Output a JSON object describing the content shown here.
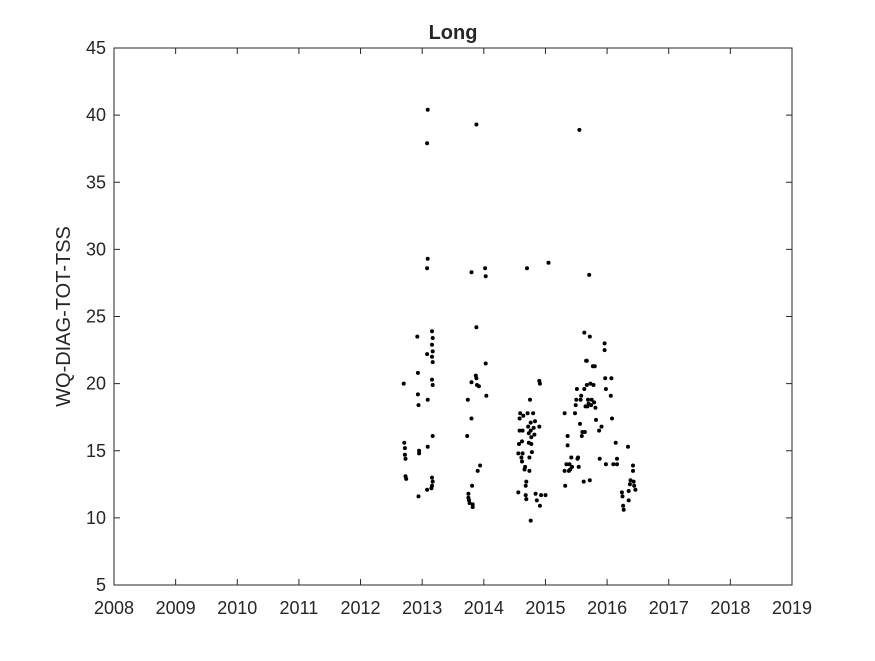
{
  "chart_data": {
    "type": "scatter",
    "title": "Long",
    "xlabel": "",
    "ylabel": "WQ-DIAG-TOT-TSS",
    "xlim": [
      2008,
      2019
    ],
    "ylim": [
      5,
      45
    ],
    "xticks": [
      "2008",
      "2009",
      "2010",
      "2011",
      "2012",
      "2013",
      "2014",
      "2015",
      "2016",
      "2017",
      "2018",
      "2019"
    ],
    "yticks": [
      "5",
      "10",
      "15",
      "20",
      "25",
      "30",
      "35",
      "40",
      "45"
    ],
    "grid": false,
    "marker_color": "#000000",
    "points": [
      [
        2012.7,
        20.0
      ],
      [
        2012.71,
        15.6
      ],
      [
        2012.72,
        15.2
      ],
      [
        2012.72,
        14.7
      ],
      [
        2012.73,
        14.4
      ],
      [
        2012.73,
        13.1
      ],
      [
        2012.74,
        12.9
      ],
      [
        2012.92,
        23.5
      ],
      [
        2012.93,
        20.8
      ],
      [
        2012.93,
        19.2
      ],
      [
        2012.94,
        18.4
      ],
      [
        2012.95,
        14.8
      ],
      [
        2012.95,
        15.0
      ],
      [
        2012.94,
        11.6
      ],
      [
        2013.09,
        40.4
      ],
      [
        2013.08,
        37.9
      ],
      [
        2013.09,
        29.3
      ],
      [
        2013.08,
        28.6
      ],
      [
        2013.08,
        22.2
      ],
      [
        2013.09,
        18.8
      ],
      [
        2013.09,
        15.3
      ],
      [
        2013.08,
        12.1
      ],
      [
        2013.16,
        23.9
      ],
      [
        2013.17,
        23.4
      ],
      [
        2013.16,
        22.9
      ],
      [
        2013.17,
        22.4
      ],
      [
        2013.16,
        22.0
      ],
      [
        2013.17,
        21.6
      ],
      [
        2013.16,
        20.3
      ],
      [
        2013.17,
        19.9
      ],
      [
        2013.17,
        16.1
      ],
      [
        2013.16,
        13.0
      ],
      [
        2013.17,
        12.7
      ],
      [
        2013.16,
        12.4
      ],
      [
        2013.15,
        12.2
      ],
      [
        2013.73,
        16.1
      ],
      [
        2013.74,
        18.8
      ],
      [
        2013.75,
        11.8
      ],
      [
        2013.75,
        11.5
      ],
      [
        2013.76,
        11.3
      ],
      [
        2013.77,
        11.1
      ],
      [
        2013.8,
        28.3
      ],
      [
        2013.8,
        20.1
      ],
      [
        2013.8,
        17.4
      ],
      [
        2013.81,
        12.4
      ],
      [
        2013.82,
        11.0
      ],
      [
        2013.82,
        10.8
      ],
      [
        2013.88,
        39.3
      ],
      [
        2013.88,
        24.2
      ],
      [
        2013.87,
        20.6
      ],
      [
        2013.88,
        20.4
      ],
      [
        2013.89,
        19.9
      ],
      [
        2013.9,
        13.5
      ],
      [
        2013.94,
        13.9
      ],
      [
        2013.92,
        19.8
      ],
      [
        2014.02,
        28.6
      ],
      [
        2014.03,
        28.0
      ],
      [
        2014.03,
        21.5
      ],
      [
        2014.04,
        19.1
      ],
      [
        2014.56,
        11.9
      ],
      [
        2014.56,
        14.8
      ],
      [
        2014.57,
        15.5
      ],
      [
        2014.58,
        16.5
      ],
      [
        2014.58,
        17.4
      ],
      [
        2014.59,
        17.8
      ],
      [
        2014.61,
        14.5
      ],
      [
        2014.62,
        15.7
      ],
      [
        2014.62,
        14.2
      ],
      [
        2014.63,
        14.8
      ],
      [
        2014.63,
        16.5
      ],
      [
        2014.64,
        17.6
      ],
      [
        2014.66,
        13.6
      ],
      [
        2014.67,
        13.8
      ],
      [
        2014.68,
        11.7
      ],
      [
        2014.68,
        12.4
      ],
      [
        2014.69,
        12.7
      ],
      [
        2014.69,
        11.4
      ],
      [
        2014.7,
        28.6
      ],
      [
        2014.71,
        17.8
      ],
      [
        2014.72,
        16.8
      ],
      [
        2014.73,
        16.3
      ],
      [
        2014.73,
        15.6
      ],
      [
        2014.74,
        14.5
      ],
      [
        2014.74,
        13.5
      ],
      [
        2014.75,
        18.8
      ],
      [
        2014.76,
        17.1
      ],
      [
        2014.76,
        16.5
      ],
      [
        2014.77,
        16.0
      ],
      [
        2014.77,
        15.5
      ],
      [
        2014.78,
        14.9
      ],
      [
        2014.76,
        9.8
      ],
      [
        2014.8,
        17.8
      ],
      [
        2014.81,
        16.7
      ],
      [
        2014.82,
        16.2
      ],
      [
        2014.83,
        17.2
      ],
      [
        2014.84,
        11.8
      ],
      [
        2014.86,
        11.3
      ],
      [
        2014.9,
        20.2
      ],
      [
        2014.91,
        20.0
      ],
      [
        2014.9,
        16.8
      ],
      [
        2014.91,
        10.9
      ],
      [
        2014.93,
        11.7
      ],
      [
        2015.05,
        29.0
      ],
      [
        2015.0,
        11.7
      ],
      [
        2015.31,
        17.8
      ],
      [
        2015.31,
        13.5
      ],
      [
        2015.32,
        12.4
      ],
      [
        2015.34,
        14.0
      ],
      [
        2015.36,
        16.1
      ],
      [
        2015.36,
        15.4
      ],
      [
        2015.38,
        13.5
      ],
      [
        2015.39,
        14.0
      ],
      [
        2015.4,
        13.6
      ],
      [
        2015.42,
        14.5
      ],
      [
        2015.43,
        13.8
      ],
      [
        2015.48,
        17.8
      ],
      [
        2015.49,
        18.4
      ],
      [
        2015.5,
        18.8
      ],
      [
        2015.51,
        19.6
      ],
      [
        2015.52,
        14.4
      ],
      [
        2015.53,
        14.5
      ],
      [
        2015.54,
        13.8
      ],
      [
        2015.55,
        38.9
      ],
      [
        2015.56,
        17.0
      ],
      [
        2015.57,
        18.8
      ],
      [
        2015.58,
        19.1
      ],
      [
        2015.59,
        16.1
      ],
      [
        2015.6,
        16.4
      ],
      [
        2015.62,
        12.7
      ],
      [
        2015.63,
        23.8
      ],
      [
        2015.63,
        19.6
      ],
      [
        2015.64,
        16.4
      ],
      [
        2015.65,
        18.3
      ],
      [
        2015.66,
        21.7
      ],
      [
        2015.67,
        21.7
      ],
      [
        2015.67,
        19.9
      ],
      [
        2015.68,
        18.3
      ],
      [
        2015.69,
        18.8
      ],
      [
        2015.7,
        18.5
      ],
      [
        2015.71,
        28.1
      ],
      [
        2015.72,
        23.5
      ],
      [
        2015.73,
        20.0
      ],
      [
        2015.72,
        12.8
      ],
      [
        2015.74,
        18.4
      ],
      [
        2015.75,
        18.8
      ],
      [
        2015.77,
        21.3
      ],
      [
        2015.78,
        19.9
      ],
      [
        2015.79,
        18.6
      ],
      [
        2015.8,
        21.3
      ],
      [
        2015.81,
        18.2
      ],
      [
        2015.82,
        17.3
      ],
      [
        2015.87,
        16.5
      ],
      [
        2015.88,
        14.4
      ],
      [
        2015.91,
        16.8
      ],
      [
        2015.96,
        23.0
      ],
      [
        2015.96,
        22.5
      ],
      [
        2015.97,
        20.4
      ],
      [
        2015.98,
        19.6
      ],
      [
        2015.98,
        14.0
      ],
      [
        2016.06,
        19.1
      ],
      [
        2016.07,
        20.4
      ],
      [
        2016.08,
        17.4
      ],
      [
        2016.1,
        14.0
      ],
      [
        2016.14,
        15.6
      ],
      [
        2016.16,
        14.4
      ],
      [
        2016.16,
        14.0
      ],
      [
        2016.24,
        11.9
      ],
      [
        2016.25,
        11.6
      ],
      [
        2016.26,
        10.9
      ],
      [
        2016.27,
        10.6
      ],
      [
        2016.34,
        15.3
      ],
      [
        2016.35,
        12.0
      ],
      [
        2016.35,
        11.3
      ],
      [
        2016.37,
        12.5
      ],
      [
        2016.38,
        12.8
      ],
      [
        2016.42,
        13.9
      ],
      [
        2016.42,
        13.5
      ],
      [
        2016.43,
        12.7
      ],
      [
        2016.44,
        12.4
      ],
      [
        2016.46,
        12.1
      ]
    ]
  }
}
